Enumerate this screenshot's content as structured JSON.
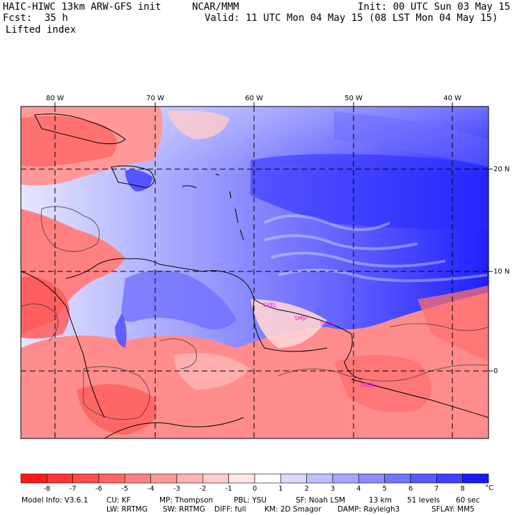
{
  "header": {
    "title": "HAIC-HIWC 13km ARW-GFS init",
    "org": "NCAR/MMM",
    "init": "Init: 00 UTC Sun 03 May 15",
    "fcst_label": "Fcst:",
    "fcst_value": "35 h",
    "valid": "Valid: 11 UTC Mon 04 May 15 (08 LST Mon 04 May 15)",
    "field": "Lifted index"
  },
  "map": {
    "lon_labels": [
      "80 W",
      "70 W",
      "60 W",
      "50 W",
      "40 W"
    ],
    "lat_labels": [
      "20 N",
      "10 N",
      "0"
    ],
    "stations": [
      "SYEL",
      "SMJP",
      "SOCA",
      "SBBE"
    ]
  },
  "colorbar": {
    "ticks": [
      "-8",
      "-7",
      "-6",
      "-5",
      "-4",
      "-3",
      "-2",
      "-1",
      "0",
      "1",
      "2",
      "3",
      "4",
      "5",
      "6",
      "7",
      "8"
    ],
    "unit": "°C",
    "colors": [
      "#ff1a1a",
      "#ff3333",
      "#ff4d4d",
      "#ff6666",
      "#ff8080",
      "#ff9999",
      "#ffb3b3",
      "#ffcccc",
      "#ffe6e6",
      "#ffffff",
      "#d9d9ff",
      "#bfbfff",
      "#a6a6ff",
      "#8c8cff",
      "#7373ff",
      "#5959ff",
      "#4040ff",
      "#1a1aff"
    ]
  },
  "footer": {
    "line1": [
      "Model Info: V3.6.1",
      "CU: KF",
      "MP: Thompson",
      "PBL: YSU",
      "SF: Noah LSM",
      "13 km",
      "51 levels",
      "60 sec"
    ],
    "line2": [
      "LW: RRTMG",
      "SW: RRTMG",
      "DIFF: full",
      "KM: 2D Smagor",
      "DAMP: Rayleigh3",
      "SFLAY: MM5"
    ]
  }
}
